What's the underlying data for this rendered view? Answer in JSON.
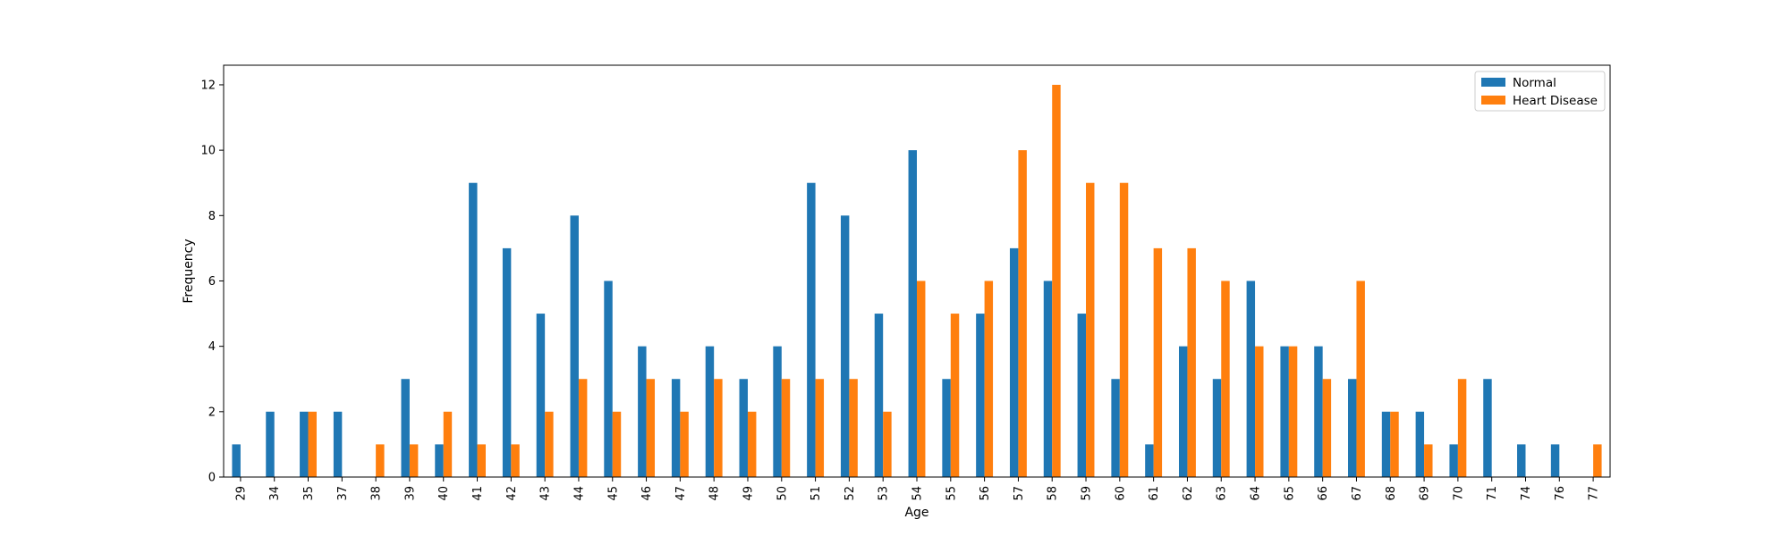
{
  "chart_data": {
    "type": "bar",
    "title": "",
    "xlabel": "Age",
    "ylabel": "Frequency",
    "ylim": [
      0,
      12.6
    ],
    "yticks": [
      0,
      2,
      4,
      6,
      8,
      10,
      12
    ],
    "legend_position": "top-right",
    "grid": false,
    "categories": [
      "29",
      "34",
      "35",
      "37",
      "38",
      "39",
      "40",
      "41",
      "42",
      "43",
      "44",
      "45",
      "46",
      "47",
      "48",
      "49",
      "50",
      "51",
      "52",
      "53",
      "54",
      "55",
      "56",
      "57",
      "58",
      "59",
      "60",
      "61",
      "62",
      "63",
      "64",
      "65",
      "66",
      "67",
      "68",
      "69",
      "70",
      "71",
      "74",
      "76",
      "77"
    ],
    "series": [
      {
        "name": "Normal",
        "color": "#1f77b4",
        "values": [
          1,
          2,
          2,
          2,
          0,
          3,
          1,
          9,
          7,
          5,
          8,
          6,
          4,
          3,
          4,
          3,
          4,
          9,
          8,
          5,
          10,
          3,
          5,
          7,
          6,
          5,
          3,
          1,
          4,
          3,
          6,
          4,
          4,
          3,
          2,
          2,
          1,
          3,
          1,
          1,
          0
        ]
      },
      {
        "name": "Heart Disease",
        "color": "#ff7f0e",
        "values": [
          0,
          0,
          2,
          0,
          1,
          1,
          2,
          1,
          1,
          2,
          3,
          2,
          3,
          2,
          3,
          2,
          3,
          3,
          3,
          2,
          6,
          5,
          6,
          10,
          12,
          9,
          9,
          7,
          7,
          6,
          4,
          4,
          3,
          6,
          2,
          1,
          3,
          0,
          0,
          0,
          1
        ]
      }
    ]
  }
}
